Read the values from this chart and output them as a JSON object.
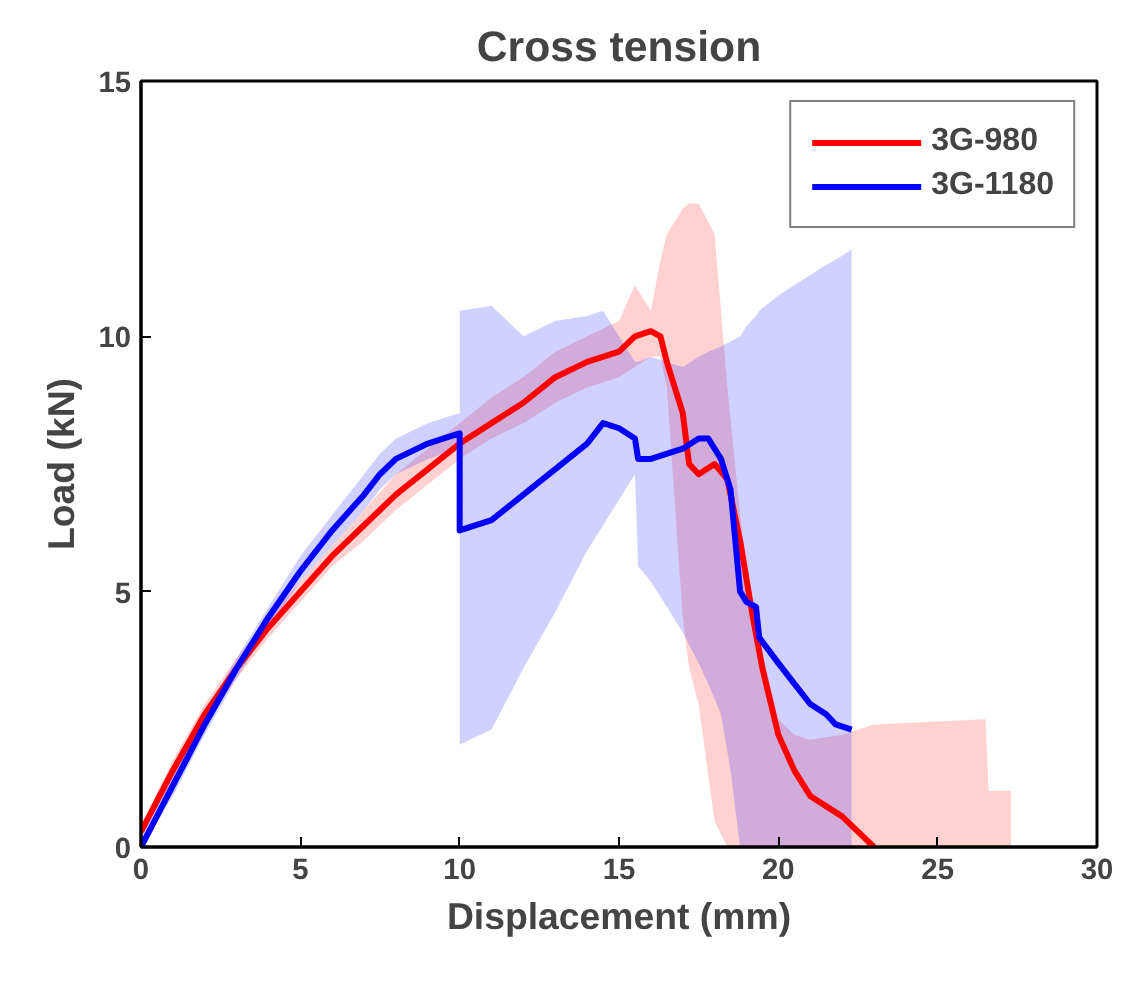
{
  "chart_data": {
    "type": "line",
    "title": "Cross tension",
    "xlabel": "Displacement (mm)",
    "ylabel": "Load (kN)",
    "xlim": [
      0,
      30
    ],
    "ylim": [
      0,
      15
    ],
    "xticks": [
      0,
      5,
      10,
      15,
      20,
      25,
      30
    ],
    "yticks": [
      0,
      5,
      10,
      15
    ],
    "grid": false,
    "legend": "top right",
    "series": [
      {
        "name": "3G-980",
        "color": "#ff0000",
        "x": [
          0,
          1,
          2,
          3,
          4,
          5,
          6,
          7,
          8,
          9,
          10,
          11,
          12,
          13,
          14,
          15,
          15.5,
          16,
          16.3,
          16.5,
          17,
          17.2,
          17.5,
          18,
          18.4,
          18.8,
          19.2,
          19.5,
          20,
          20.5,
          21,
          22,
          23,
          26.5,
          26.6,
          27.3
        ],
        "values": [
          0.3,
          1.5,
          2.6,
          3.5,
          4.3,
          5.0,
          5.7,
          6.3,
          6.9,
          7.4,
          7.9,
          8.3,
          8.7,
          9.2,
          9.5,
          9.7,
          10.0,
          10.1,
          10.0,
          9.5,
          8.5,
          7.5,
          7.3,
          7.5,
          7.2,
          6.0,
          4.5,
          3.5,
          2.2,
          1.5,
          1.0,
          0.6,
          0.0,
          null,
          null,
          null
        ],
        "lower": [
          0.2,
          1.3,
          2.4,
          3.3,
          4.1,
          4.8,
          5.5,
          6.0,
          6.6,
          7.1,
          7.6,
          8.0,
          8.3,
          8.7,
          9.0,
          9.2,
          9.4,
          9.6,
          9.6,
          9.0,
          4.5,
          3.5,
          2.8,
          0.5,
          0,
          0,
          0,
          0,
          0,
          0,
          0,
          0,
          0,
          0,
          0,
          0
        ],
        "upper": [
          0.4,
          1.7,
          2.8,
          3.7,
          4.5,
          5.2,
          5.9,
          6.6,
          7.3,
          7.8,
          8.3,
          8.8,
          9.2,
          9.7,
          10.0,
          10.3,
          11.0,
          10.5,
          11.5,
          12.0,
          12.5,
          12.6,
          12.6,
          12.0,
          9.0,
          6.5,
          4.5,
          3.8,
          2.5,
          2.2,
          2.1,
          2.2,
          2.4,
          2.5,
          1.1,
          1.1
        ]
      },
      {
        "name": "3G-1180",
        "color": "#0000ff",
        "x": [
          0,
          1,
          2,
          3,
          4,
          5,
          6,
          7,
          7.5,
          8,
          9,
          9.5,
          10,
          10,
          11,
          12,
          13,
          14,
          14.5,
          15,
          15.5,
          15.6,
          16,
          17,
          17.5,
          17.8,
          18.2,
          18.5,
          18.8,
          19,
          19.3,
          19.4,
          20,
          20.5,
          21,
          21.5,
          21.8,
          22.3
        ],
        "values": [
          0,
          1.2,
          2.4,
          3.5,
          4.5,
          5.4,
          6.2,
          6.9,
          7.3,
          7.6,
          7.9,
          8.0,
          8.1,
          6.2,
          6.4,
          6.9,
          7.4,
          7.9,
          8.3,
          8.2,
          8.0,
          7.6,
          7.6,
          7.8,
          8.0,
          8.0,
          7.6,
          7.0,
          5.0,
          4.8,
          4.7,
          4.1,
          3.6,
          3.2,
          2.8,
          2.6,
          2.4,
          2.3
        ],
        "lower": [
          0,
          1.0,
          2.2,
          3.3,
          4.3,
          5.2,
          5.9,
          6.6,
          7.0,
          7.3,
          7.6,
          7.7,
          7.8,
          2.0,
          2.3,
          3.5,
          4.6,
          5.8,
          6.3,
          6.8,
          7.3,
          5.5,
          5.2,
          4.2,
          3.6,
          3.2,
          2.6,
          1.5,
          0,
          0,
          0,
          0,
          0,
          0,
          0,
          0,
          0,
          0
        ],
        "upper": [
          0.2,
          1.4,
          2.6,
          3.7,
          4.7,
          5.7,
          6.5,
          7.3,
          7.7,
          8.0,
          8.3,
          8.4,
          8.5,
          10.5,
          10.6,
          10.0,
          10.3,
          10.4,
          10.5,
          10.0,
          9.5,
          9.5,
          9.6,
          9.4,
          9.6,
          9.7,
          9.8,
          9.9,
          10.0,
          10.2,
          10.4,
          10.5,
          10.8,
          11.0,
          11.2,
          11.4,
          11.5,
          11.7
        ]
      }
    ]
  }
}
